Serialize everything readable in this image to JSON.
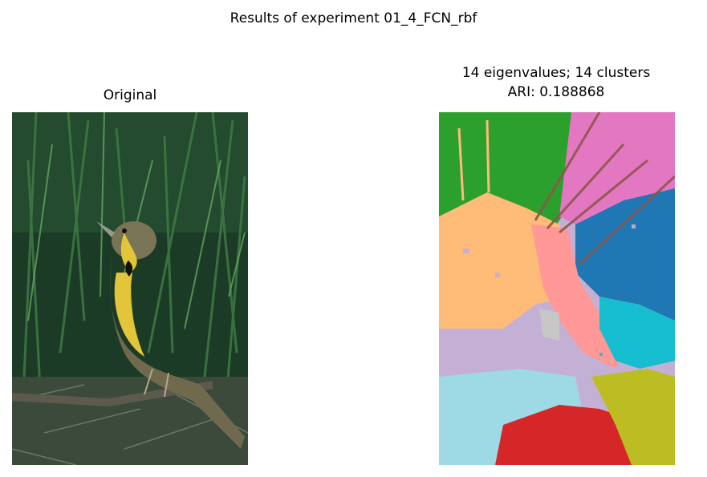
{
  "figure": {
    "suptitle": "Results of experiment 01_4_FCN_rbf"
  },
  "left_panel": {
    "title": "Original",
    "image_subject": "bird-in-grass-photo"
  },
  "right_panel": {
    "title_line1": "14 eigenvalues; 14 clusters",
    "title_line2": "ARI: 0.188868",
    "image_subject": "segmentation-label-map"
  },
  "colors": {
    "grass_dark": "#1c3b26",
    "grass_mid": "#2f6b3c",
    "grass_light": "#5aa05a",
    "bird_yellow": "#e3c53a",
    "bird_brown": "#6f6a4e",
    "seg_green": "#2ca02c",
    "seg_pink": "#e377c2",
    "seg_blue": "#1f77b4",
    "seg_orange": "#ffbb78",
    "seg_cyan": "#17becf",
    "seg_lavender": "#c5b0d5",
    "seg_lightpink": "#ff9896",
    "seg_lightblue": "#9edae5",
    "seg_red": "#d62728",
    "seg_olive": "#bcbd22",
    "seg_brown": "#8c564b",
    "seg_gray": "#c7c7c7"
  }
}
